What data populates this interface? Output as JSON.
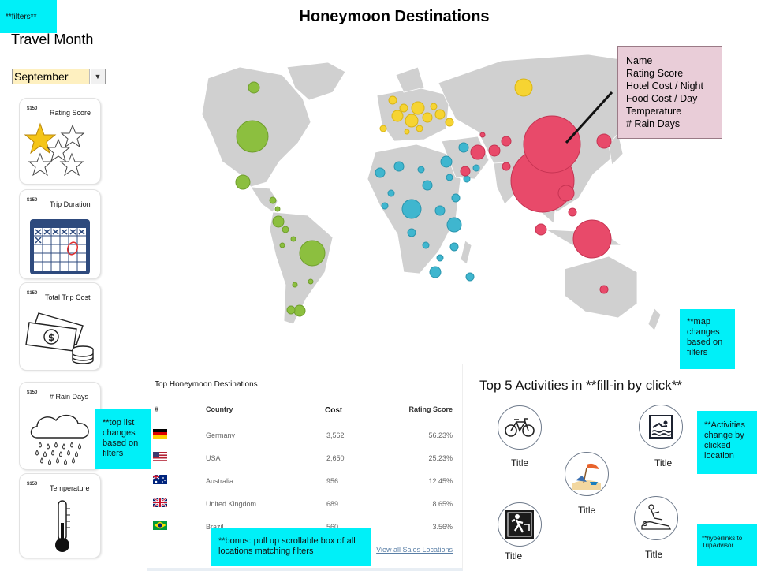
{
  "page_title": "Honeymoon Destinations",
  "filters_note": "**filters**",
  "travel_month": {
    "label": "Travel Month",
    "value": "September"
  },
  "filter_cards": [
    {
      "tag": "$150",
      "label": "Rating Score",
      "icon": "rating-stars-icon"
    },
    {
      "tag": "$150",
      "label": "Trip Duration",
      "icon": "calendar-icon"
    },
    {
      "tag": "$150",
      "label": "Total Trip Cost",
      "icon": "money-icon"
    },
    {
      "tag": "$150",
      "label": "# Rain Days",
      "icon": "rain-cloud-icon"
    },
    {
      "tag": "$150",
      "label": "Temperature",
      "icon": "thermometer-icon"
    }
  ],
  "map": {
    "tooltip_fields": [
      "Name",
      "Rating Score",
      "Hotel Cost / Night",
      "Food Cost / Day",
      "Temperature",
      "# Rain Days"
    ],
    "note": "**map changes based on filters",
    "region_colors": {
      "americas": "#8cbf3f",
      "europe": "#f6d432",
      "africa_middle_east": "#3fb6cf",
      "asia": "#e84a6a"
    }
  },
  "top_list": {
    "title": "Top Honeymoon Destinations",
    "headers": {
      "rank": "#",
      "country": "Country",
      "cost": "Cost",
      "rating": "Rating Score"
    },
    "rows": [
      {
        "country": "Germany",
        "cost": "3,562",
        "rating": "56.23%",
        "flag": "germany-flag-icon"
      },
      {
        "country": "USA",
        "cost": "2,650",
        "rating": "25.23%",
        "flag": "usa-flag-icon"
      },
      {
        "country": "Australia",
        "cost": "956",
        "rating": "12.45%",
        "flag": "australia-flag-icon"
      },
      {
        "country": "United Kingdom",
        "cost": "689",
        "rating": "8.65%",
        "flag": "uk-flag-icon"
      },
      {
        "country": "Brazil",
        "cost": "560",
        "rating": "3.56%",
        "flag": "brazil-flag-icon"
      }
    ],
    "view_all": "View all Sales Locations",
    "note": "**top list changes based on filters",
    "bonus_note": "**bonus: pull up scrollable box of all locations matching filters"
  },
  "activities": {
    "heading": "Top 5 Activities in **fill-in by click**",
    "items": [
      {
        "title": "Title",
        "icon": "bicycle-icon"
      },
      {
        "title": "Title",
        "icon": "beach-icon"
      },
      {
        "title": "Title",
        "icon": "swimming-icon"
      },
      {
        "title": "Title",
        "icon": "hiking-icon"
      },
      {
        "title": "Title",
        "icon": "massage-icon"
      }
    ],
    "note": "**Activities change by clicked location",
    "hyperlinks_note": "**hyperlinks to TripAdvisor"
  }
}
